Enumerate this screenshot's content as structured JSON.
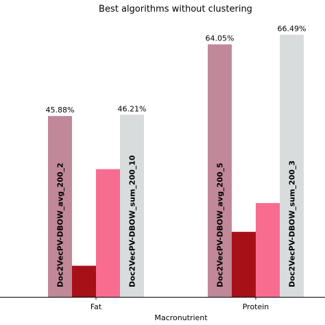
{
  "chart_data": {
    "type": "bar",
    "title": "Best algorithms without clustering",
    "xlabel": "Macronutrient",
    "ylabel": "",
    "categories": [
      "Fat",
      "Protein"
    ],
    "ylim": [
      0,
      68
    ],
    "grid": false,
    "legend": false,
    "series": [
      {
        "color": "#c08898",
        "values": [
          45.88,
          64.05
        ],
        "data_labels": [
          "45.88%",
          "64.05%"
        ],
        "bar_labels": [
          "Doc2VecPV-DBOW_avg_200_2",
          "Doc2VecPV-DBOW_avg_200_5"
        ]
      },
      {
        "color": "#a81018",
        "values": [
          7.9,
          16.5
        ],
        "data_labels": [
          "",
          ""
        ],
        "bar_labels": [
          "",
          ""
        ]
      },
      {
        "color": "#f86c90",
        "values": [
          32.4,
          23.8
        ],
        "data_labels": [
          "",
          ""
        ],
        "bar_labels": [
          "",
          ""
        ]
      },
      {
        "color": "#d8dcdc",
        "values": [
          46.21,
          66.49
        ],
        "data_labels": [
          "46.21%",
          "66.49%"
        ],
        "bar_labels": [
          "Doc2VecPV-DBOW_sum_200_10",
          "Doc2VecPV-DBOW_sum_200_3"
        ]
      }
    ]
  }
}
